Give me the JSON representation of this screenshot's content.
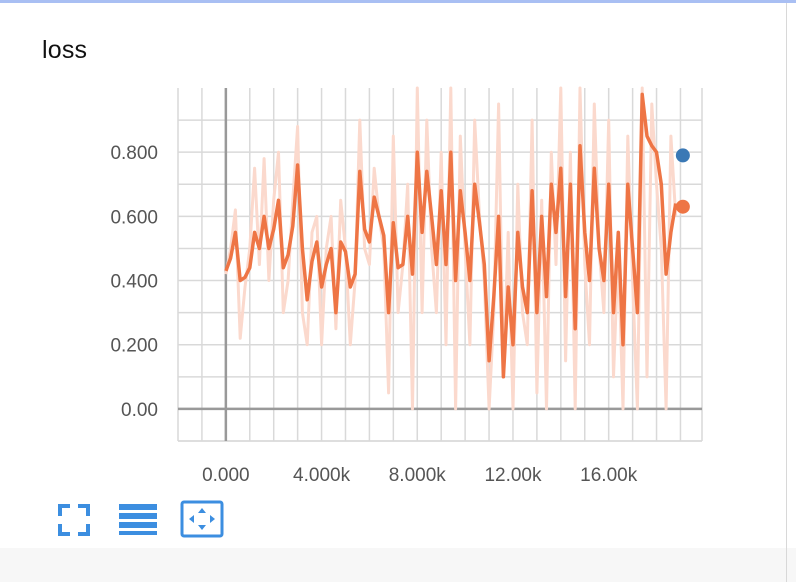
{
  "card": {
    "title": "loss"
  },
  "colors": {
    "smoothed_line": "#ee7545",
    "raw_line": "#fbd9cd",
    "blue_marker": "#3a78b5",
    "orange_marker": "#ee7545",
    "grid": "#d9d9d9",
    "zero_axis": "#999999",
    "toolbar_icon": "#3c8ee0"
  },
  "toolbar": {
    "icons": [
      "fullscreen-icon",
      "data-table-icon",
      "fit-domain-icon"
    ]
  },
  "chart_data": {
    "type": "line",
    "title": "loss",
    "xlabel": "",
    "ylabel": "",
    "xlim": [
      -2000,
      19900
    ],
    "ylim": [
      -0.1,
      1.0
    ],
    "grid": true,
    "legend": "none",
    "x_tick_labels": [
      "0.000",
      "4.000k",
      "8.000k",
      "12.00k",
      "16.00k"
    ],
    "x_ticks": [
      0,
      4000,
      8000,
      12000,
      16000
    ],
    "y_tick_labels": [
      "0.00",
      "0.200",
      "0.400",
      "0.600",
      "0.800"
    ],
    "y_ticks": [
      0,
      0.2,
      0.4,
      0.6,
      0.8
    ],
    "series": [
      {
        "role": "raw",
        "x": [
          0,
          200,
          400,
          600,
          800,
          1000,
          1200,
          1400,
          1600,
          1800,
          2000,
          2200,
          2400,
          2600,
          2800,
          3000,
          3200,
          3400,
          3600,
          3800,
          4000,
          4200,
          4400,
          4600,
          4800,
          5000,
          5200,
          5400,
          5600,
          5800,
          6000,
          6200,
          6400,
          6600,
          6800,
          7000,
          7200,
          7400,
          7600,
          7800,
          8000,
          8200,
          8400,
          8600,
          8800,
          9000,
          9200,
          9400,
          9600,
          9800,
          10000,
          10200,
          10400,
          10600,
          10800,
          11000,
          11200,
          11400,
          11600,
          11800,
          12000,
          12200,
          12400,
          12600,
          12800,
          13000,
          13200,
          13400,
          13600,
          13800,
          14000,
          14200,
          14400,
          14600,
          14800,
          15000,
          15200,
          15400,
          15600,
          15800,
          16000,
          16200,
          16400,
          16600,
          16800,
          17000,
          17200,
          17400,
          17600,
          17800,
          18000,
          18200,
          18400,
          18600,
          18800
        ],
        "values": [
          0.42,
          0.5,
          0.62,
          0.22,
          0.38,
          0.5,
          0.75,
          0.45,
          0.78,
          0.4,
          0.65,
          0.8,
          0.3,
          0.4,
          0.65,
          0.88,
          0.3,
          0.2,
          0.55,
          0.6,
          0.2,
          0.5,
          0.6,
          0.25,
          0.65,
          0.5,
          0.2,
          0.4,
          0.9,
          0.5,
          0.45,
          0.75,
          0.6,
          0.5,
          0.05,
          0.85,
          0.3,
          0.45,
          0.7,
          0.0,
          1.0,
          0.3,
          0.9,
          0.5,
          0.3,
          0.8,
          0.2,
          1.0,
          0.0,
          0.85,
          0.5,
          0.2,
          0.9,
          0.6,
          0.4,
          0.0,
          0.3,
          0.95,
          0.1,
          0.55,
          0.0,
          0.7,
          0.3,
          0.2,
          0.9,
          0.05,
          0.65,
          0.0,
          0.8,
          0.45,
          1.0,
          0.15,
          0.8,
          0.0,
          1.0,
          0.45,
          0.2,
          0.95,
          0.5,
          0.3,
          0.9,
          0.1,
          0.5,
          0.0,
          0.85,
          0.4,
          0.0,
          1.0,
          0.1,
          0.95,
          0.7,
          0.5,
          0.0,
          0.85,
          0.6
        ]
      },
      {
        "role": "smoothed",
        "x": [
          0,
          200,
          400,
          600,
          800,
          1000,
          1200,
          1400,
          1600,
          1800,
          2000,
          2200,
          2400,
          2600,
          2800,
          3000,
          3200,
          3400,
          3600,
          3800,
          4000,
          4200,
          4400,
          4600,
          4800,
          5000,
          5200,
          5400,
          5600,
          5800,
          6000,
          6200,
          6400,
          6600,
          6800,
          7000,
          7200,
          7400,
          7600,
          7800,
          8000,
          8200,
          8400,
          8600,
          8800,
          9000,
          9200,
          9400,
          9600,
          9800,
          10000,
          10200,
          10400,
          10600,
          10800,
          11000,
          11200,
          11400,
          11600,
          11800,
          12000,
          12200,
          12400,
          12600,
          12800,
          13000,
          13200,
          13400,
          13600,
          13800,
          14000,
          14200,
          14400,
          14600,
          14800,
          15000,
          15200,
          15400,
          15600,
          15800,
          16000,
          16200,
          16400,
          16600,
          16800,
          17000,
          17200,
          17400,
          17600,
          17800,
          18000,
          18200,
          18400,
          18600,
          18800
        ],
        "values": [
          0.43,
          0.47,
          0.55,
          0.4,
          0.41,
          0.44,
          0.55,
          0.5,
          0.6,
          0.5,
          0.56,
          0.65,
          0.44,
          0.48,
          0.57,
          0.76,
          0.5,
          0.34,
          0.46,
          0.52,
          0.38,
          0.45,
          0.5,
          0.3,
          0.52,
          0.49,
          0.38,
          0.42,
          0.74,
          0.56,
          0.52,
          0.66,
          0.6,
          0.54,
          0.3,
          0.58,
          0.44,
          0.45,
          0.6,
          0.42,
          0.8,
          0.55,
          0.74,
          0.6,
          0.45,
          0.68,
          0.45,
          0.8,
          0.4,
          0.68,
          0.55,
          0.4,
          0.7,
          0.58,
          0.45,
          0.15,
          0.35,
          0.6,
          0.1,
          0.38,
          0.2,
          0.55,
          0.38,
          0.3,
          0.68,
          0.3,
          0.6,
          0.35,
          0.7,
          0.55,
          0.75,
          0.35,
          0.7,
          0.25,
          0.82,
          0.55,
          0.4,
          0.75,
          0.5,
          0.4,
          0.7,
          0.3,
          0.55,
          0.2,
          0.7,
          0.5,
          0.3,
          0.98,
          0.85,
          0.82,
          0.8,
          0.7,
          0.42,
          0.55,
          0.64
        ]
      }
    ],
    "markers": [
      {
        "color_key": "blue_marker",
        "x": 19100,
        "value": 0.79
      },
      {
        "color_key": "orange_marker",
        "x": 19100,
        "value": 0.63
      }
    ]
  }
}
